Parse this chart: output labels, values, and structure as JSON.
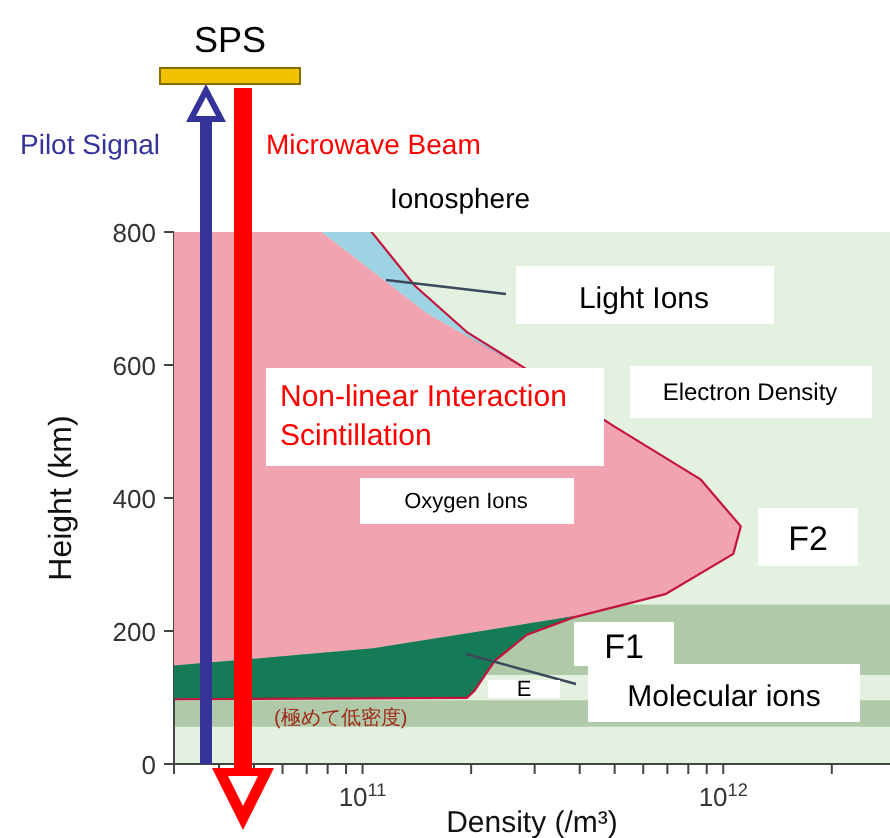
{
  "chart_data": {
    "type": "area",
    "xlabel": "Density (/m³)",
    "ylabel": "Height (km)",
    "log": "x",
    "xlim": [
      30000000000.0,
      2900000000000.0
    ],
    "ylim": [
      0,
      800
    ],
    "xticks": [
      {
        "value": 30000000000.0,
        "label": null
      },
      {
        "value": 40000000000.0,
        "label": null
      },
      {
        "value": 50000000000.0,
        "label": null
      },
      {
        "value": 60000000000.0,
        "label": null
      },
      {
        "value": 70000000000.0,
        "label": null
      },
      {
        "value": 80000000000.0,
        "label": null
      },
      {
        "value": 90000000000.0,
        "label": null
      },
      {
        "value": 100000000000.0,
        "label": "10$^{11}$"
      },
      {
        "value": 200000000000.0,
        "label": null
      },
      {
        "value": 300000000000.0,
        "label": null
      },
      {
        "value": 400000000000.0,
        "label": null
      },
      {
        "value": 500000000000.0,
        "label": null
      },
      {
        "value": 600000000000.0,
        "label": null
      },
      {
        "value": 700000000000.0,
        "label": null
      },
      {
        "value": 800000000000.0,
        "label": null
      },
      {
        "value": 900000000000.0,
        "label": null
      },
      {
        "value": 1000000000000.0,
        "label": "10$^{12}$"
      },
      {
        "value": 2000000000000.0,
        "label": null
      }
    ],
    "yticks": [
      0,
      200,
      400,
      600,
      800
    ],
    "marker": "none",
    "line_style": "solid",
    "bands": [
      {
        "axis": "y",
        "from": 134,
        "to": 240,
        "color": "#b0caa9"
      },
      {
        "axis": "y",
        "from": 56,
        "to": 96,
        "color": "#b0caa9"
      }
    ],
    "series": [
      {
        "color": "#f1a3b0",
        "x": [
          30000000000.0,
          77000000000.0,
          151000000000.0,
          273000000000.0,
          494000000000.0,
          860000000000.0,
          1110000000000.0,
          1060000000000.0,
          690000000000.0,
          384000000000.0,
          107000000000.0,
          30000000000.0
        ],
        "values": [
          800,
          800,
          678,
          598,
          507,
          427,
          357,
          317,
          257,
          222,
          174,
          148
        ]
      },
      {
        "color": "#9dd3e3",
        "x": [
          77000000000.0,
          105000000000.0,
          139000000000.0,
          194000000000.0,
          273000000000.0,
          151000000000.0
        ],
        "values": [
          800,
          800,
          718,
          648,
          598,
          678
        ]
      },
      {
        "color": "#157a56",
        "x": [
          30000000000.0,
          107000000000.0,
          384000000000.0,
          285000000000.0,
          231000000000.0,
          203000000000.0,
          194000000000.0,
          30000000000.0
        ],
        "values": [
          148,
          174,
          222,
          196,
          156,
          111,
          101,
          99
        ]
      },
      {
        "type": "line",
        "color": "#c3143c",
        "x": [
          105000000000.0,
          139000000000.0,
          194000000000.0,
          273000000000.0,
          494000000000.0,
          860000000000.0,
          1110000000000.0,
          1060000000000.0,
          690000000000.0,
          384000000000.0,
          285000000000.0,
          231000000000.0,
          203000000000.0,
          194000000000.0,
          30000000000.0
        ],
        "values": [
          800,
          718,
          648,
          598,
          507,
          427,
          357,
          317,
          257,
          222,
          196,
          156,
          111,
          101,
          99
        ]
      }
    ],
    "annotations": [
      "SPS",
      "Pilot Signal",
      "Microwave Beam",
      "Ionosphere",
      "Light Ions",
      "Electron Density",
      "Non-linear Interaction\nScintillation",
      "Oxygen Ions",
      "F2",
      "F1",
      "E",
      "Molecular ions",
      "(極めて低密度)"
    ]
  }
}
